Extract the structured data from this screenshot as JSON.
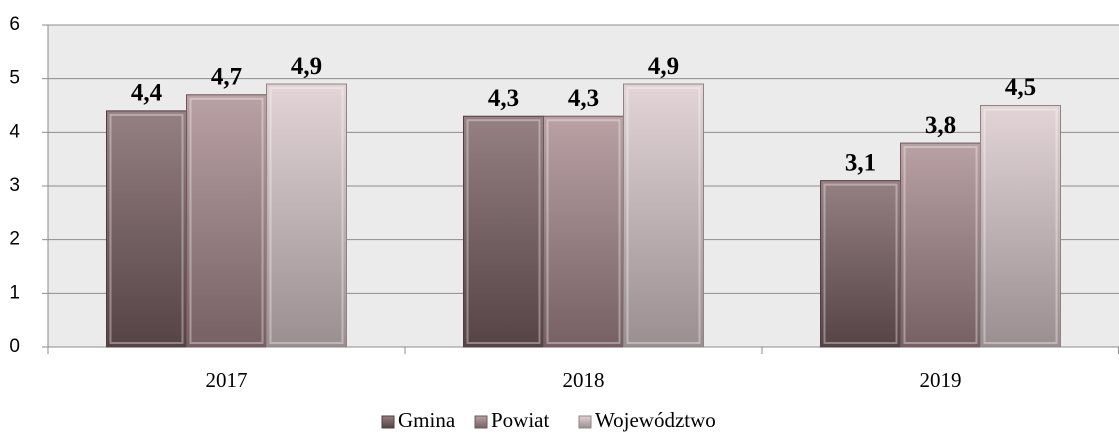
{
  "chart_data": {
    "type": "bar",
    "categories": [
      "2017",
      "2018",
      "2019"
    ],
    "series": [
      {
        "name": "Gmina",
        "color": "#7a6064",
        "values": [
          4.4,
          4.3,
          3.1
        ],
        "value_labels": [
          "4,4",
          "4,3",
          "3,1"
        ]
      },
      {
        "name": "Powiat",
        "color": "#a8898d",
        "values": [
          4.7,
          4.3,
          3.8
        ],
        "value_labels": [
          "4,7",
          "4,3",
          "3,8"
        ]
      },
      {
        "name": "Województwo",
        "color": "#dccbcd",
        "values": [
          4.9,
          4.9,
          4.5
        ],
        "value_labels": [
          "4,9",
          "4,9",
          "4,5"
        ]
      }
    ],
    "ylim": [
      0,
      6
    ],
    "yticks": [
      0,
      1,
      2,
      3,
      4,
      5,
      6
    ],
    "grid": true,
    "legend": "bottom"
  }
}
